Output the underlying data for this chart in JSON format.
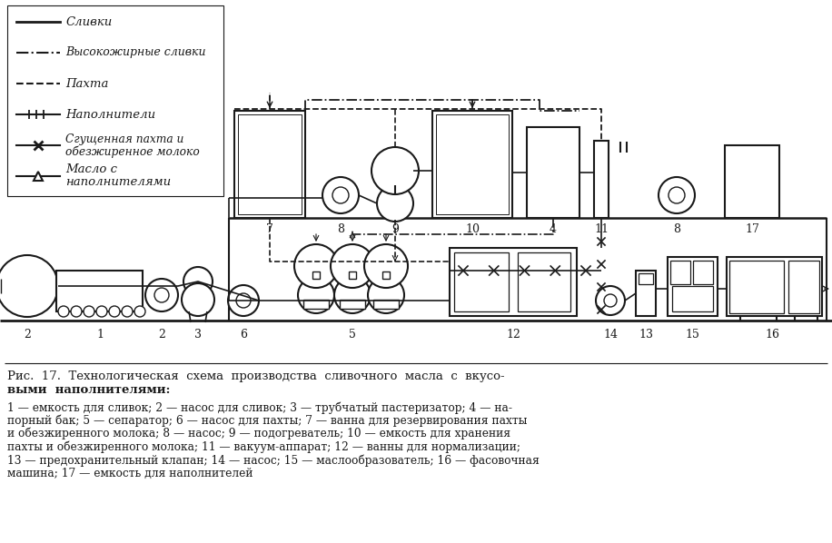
{
  "bg_color": "#ffffff",
  "title_bold": "Рис.  17.  Технологическая  схема  производства  сливочного  масла  с  вкусо-",
  "title_bold2": "выми  наполнителями:",
  "desc_lines": [
    "1 — емкость для сливок; 2 — насос для сливок; 3 — трубчатый пастеризатор; 4 — на-",
    "порный бак; 5 — сепаратор; 6 — насос для пахты; 7 — ванна для резервирования пахты",
    "и обезжиренного молока; 8 — насос; 9 — подогреватель; 10 — емкость для хранения",
    "пахты и обезжиренного молока; 11 — вакуум-аппарат; 12 — ванны для нормализации;",
    "13 — предохранительный клапан; 14 — насос; 15 — маслообразователь; 16 — фасовочная",
    "машина; 17 — емкость для наполнителей"
  ],
  "lc": "#1a1a1a",
  "tc": "#1a1a1a"
}
